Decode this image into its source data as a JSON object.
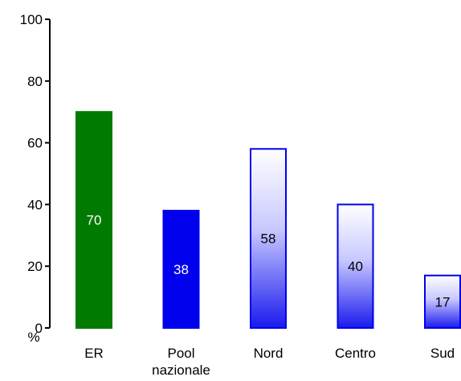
{
  "chart_data": {
    "type": "bar",
    "categories": [
      "ER",
      "Pool nazionale",
      "Nord",
      "Centro",
      "Sud"
    ],
    "category_lines": [
      [
        "ER"
      ],
      [
        "Pool",
        "nazionale"
      ],
      [
        "Nord"
      ],
      [
        "Centro"
      ],
      [
        "Sud"
      ]
    ],
    "values": [
      70,
      38,
      58,
      40,
      17
    ],
    "ylim": [
      0,
      100
    ],
    "yticks": [
      0,
      20,
      40,
      60,
      80,
      100
    ],
    "ylabel": "%",
    "xlabel": "",
    "title": "",
    "grid": false,
    "legend": "none",
    "bar_styles": [
      {
        "fill": "#007a00",
        "label_color": "#ffffff",
        "gradient": false
      },
      {
        "fill": "#0000ee",
        "label_color": "#ffffff",
        "gradient": false
      },
      {
        "fill": "#0000ee",
        "label_color": "#000000",
        "gradient": true
      },
      {
        "fill": "#0000ee",
        "label_color": "#000000",
        "gradient": true
      },
      {
        "fill": "#0000ee",
        "label_color": "#000000",
        "gradient": true
      }
    ]
  }
}
